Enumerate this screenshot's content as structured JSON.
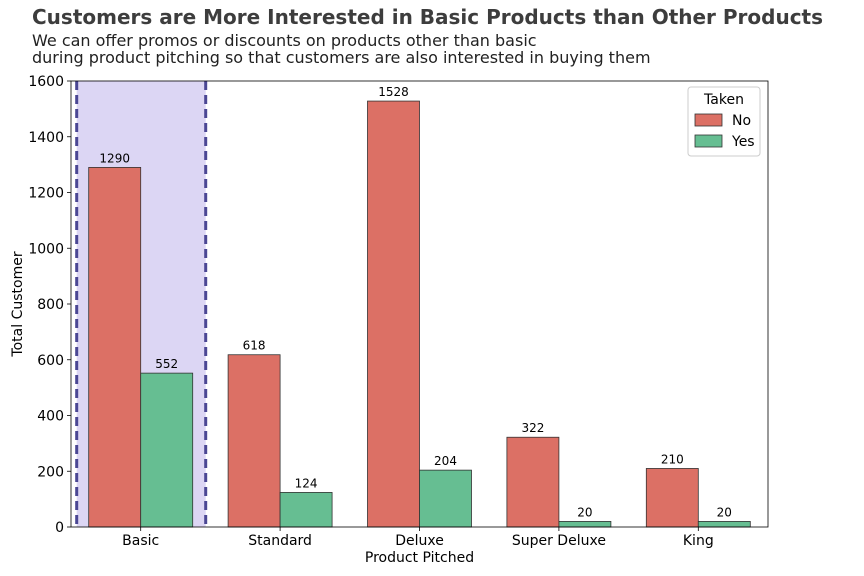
{
  "chart_data": {
    "type": "bar",
    "title": "Customers are More Interested in Basic Products than Other Products",
    "subtitle": "We can offer promos or discounts on products other than basic\nduring product pitching so that customers are also interested in buying them",
    "xlabel": "Product Pitched",
    "ylabel": "Total Customer",
    "categories": [
      "Basic",
      "Standard",
      "Deluxe",
      "Super Deluxe",
      "King"
    ],
    "series": [
      {
        "name": "No",
        "values": [
          1290,
          618,
          1528,
          322,
          210
        ],
        "color": "#dc7065"
      },
      {
        "name": "Yes",
        "values": [
          552,
          124,
          204,
          20,
          20
        ],
        "color": "#66be92"
      }
    ],
    "ylim": [
      0,
      1600
    ],
    "yticks": [
      0,
      200,
      400,
      600,
      800,
      1000,
      1200,
      1400,
      1600
    ],
    "legend": {
      "title": "Taken",
      "placement": "top-right"
    },
    "highlight": {
      "category": "Basic",
      "fill": "#dcd6f4",
      "line_color": "#4b4794"
    },
    "grid": false
  }
}
